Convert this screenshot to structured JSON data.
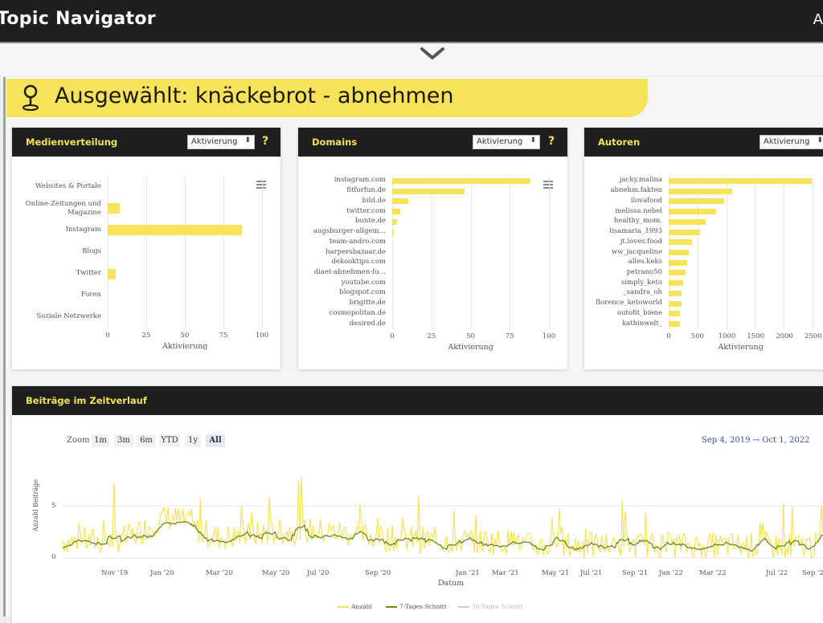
{
  "header": {
    "app_title": "Topic Navigator",
    "user_initial": "A"
  },
  "selection": {
    "text": "Ausgewählt: knäckebrot - abnehmen"
  },
  "colors": {
    "accent": "#f6e35a",
    "dark": "#1f1f1f",
    "line": "#6b8a1e",
    "range": "#3355aa"
  },
  "cards": {
    "medien": {
      "title": "Medienverteilung",
      "dropdown": "Aktivierung",
      "help": "?",
      "xlabel": "Aktivierung",
      "ticks": [
        "0",
        "25",
        "50",
        "75",
        "100"
      ],
      "xmax": 100,
      "categories": [
        "Websites & Portale",
        "Online-Zeitungen und Magazine",
        "Instagram",
        "Blogs",
        "Twitter",
        "Foren",
        "Soziale Netzwerke"
      ],
      "values": [
        0,
        8,
        87,
        0,
        5,
        0,
        0
      ]
    },
    "domains": {
      "title": "Domains",
      "dropdown": "Aktivierung",
      "help": "?",
      "xlabel": "Aktivierung",
      "ticks": [
        "0",
        "25",
        "50",
        "75",
        "100"
      ],
      "xmax": 100,
      "categories": [
        "instagram.com",
        "fitforfun.de",
        "bild.de",
        "twitter.com",
        "bunte.de",
        "augsburger-allgem…",
        "team-andro.com",
        "harpersbazaar.de",
        "dekooktips.com",
        "diaet-abnehmen-fo…",
        "youtube.com",
        "blogspot.com",
        "brigitte.de",
        "cosmopolitan.de",
        "desired.de"
      ],
      "values": [
        88,
        46,
        10,
        5,
        3,
        1,
        0,
        0,
        0,
        0,
        0,
        0,
        0,
        0,
        0
      ]
    },
    "autoren": {
      "title": "Autoren",
      "dropdown": "Aktivierung",
      "xlabel": "Aktivierung",
      "ticks": [
        "0",
        "500",
        "1000",
        "1500",
        "2000",
        "2500"
      ],
      "xmax": 2500,
      "categories": [
        "jacky.malina",
        "abnehm.fakten",
        "ilovafood",
        "melissa.nebel",
        "healthy_mom.",
        "lisamaria_1993",
        "jt.loves.food",
        "ww_jacqueline",
        "alles.keks",
        "petrano50",
        "simply_keto",
        "_sandra_oh",
        "florence_ketoworld",
        "outofit_biene",
        "kathinwelt_"
      ],
      "values": [
        2480,
        1100,
        960,
        820,
        640,
        540,
        400,
        350,
        320,
        300,
        250,
        230,
        220,
        200,
        190
      ]
    }
  },
  "timeline": {
    "title": "Beiträge im Zeitverlauf",
    "zoom_label": "Zoom",
    "zoom_buttons": [
      "1m",
      "3m",
      "6m",
      "YTD",
      "1y",
      "All"
    ],
    "range": "Sep 4, 2019 → Oct 1, 2022",
    "ylabel": "Anzahl Beiträge",
    "xlabel": "Datum",
    "yticks": [
      "0",
      "5"
    ],
    "xticks": [
      "Nov '19",
      "Jan '20",
      "Mar '20",
      "May '20",
      "Jul '20",
      "Sep '20",
      "Jan '21",
      "Mar '21",
      "May '21",
      "Jul '21",
      "Sep '21",
      "Jan '22",
      "Mar '22",
      "Jul '22",
      "Sep '22"
    ],
    "legend": [
      "Anzahl",
      "7-Tages Schnitt",
      "30-Tages Schnitt"
    ]
  },
  "chart_data": [
    {
      "type": "bar",
      "title": "Medienverteilung",
      "categories": [
        "Websites & Portale",
        "Online-Zeitungen und Magazine",
        "Instagram",
        "Blogs",
        "Twitter",
        "Foren",
        "Soziale Netzwerke"
      ],
      "values": [
        0,
        8,
        87,
        0,
        5,
        0,
        0
      ],
      "xlabel": "Aktivierung",
      "xlim": [
        0,
        100
      ]
    },
    {
      "type": "bar",
      "title": "Domains",
      "categories": [
        "instagram.com",
        "fitforfun.de",
        "bild.de",
        "twitter.com",
        "bunte.de",
        "augsburger-allgem…",
        "team-andro.com",
        "harpersbazaar.de",
        "dekooktips.com",
        "diaet-abnehmen-fo…",
        "youtube.com",
        "blogspot.com",
        "brigitte.de",
        "cosmopolitan.de",
        "desired.de"
      ],
      "values": [
        88,
        46,
        10,
        5,
        3,
        1,
        0,
        0,
        0,
        0,
        0,
        0,
        0,
        0,
        0
      ],
      "xlabel": "Aktivierung",
      "xlim": [
        0,
        100
      ]
    },
    {
      "type": "bar",
      "title": "Autoren",
      "categories": [
        "jacky.malina",
        "abnehm.fakten",
        "ilovafood",
        "melissa.nebel",
        "healthy_mom.",
        "lisamaria_1993",
        "jt.loves.food",
        "ww_jacqueline",
        "alles.keks",
        "petrano50",
        "simply_keto",
        "_sandra_oh",
        "florence_ketoworld",
        "outofit_biene",
        "kathinwelt_"
      ],
      "values": [
        2480,
        1100,
        960,
        820,
        640,
        540,
        400,
        350,
        320,
        300,
        250,
        230,
        220,
        200,
        190
      ],
      "xlabel": "Aktivierung",
      "xlim": [
        0,
        2500
      ]
    },
    {
      "type": "line",
      "title": "Beiträge im Zeitverlauf",
      "xlabel": "Datum",
      "ylabel": "Anzahl Beiträge",
      "ylim": [
        0,
        8
      ],
      "series": [
        {
          "name": "Anzahl"
        },
        {
          "name": "7-Tages Schnitt"
        },
        {
          "name": "30-Tages Schnitt"
        }
      ]
    }
  ]
}
